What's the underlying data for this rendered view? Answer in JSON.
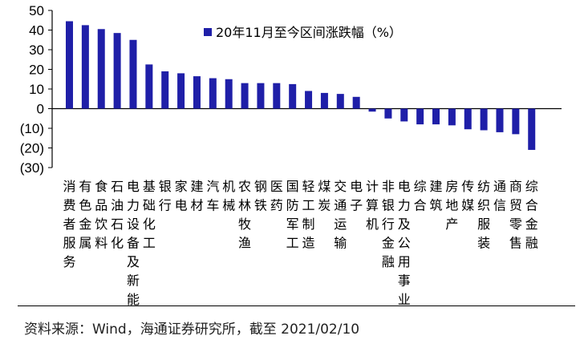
{
  "chart_data": {
    "type": "bar",
    "legend": "20年11月至今区间涨跌幅（%）",
    "legend_position": "top-right",
    "grid": false,
    "ylim": [
      -30,
      50
    ],
    "yticks": [
      50,
      40,
      30,
      20,
      10,
      0,
      -10,
      -20,
      -30
    ],
    "ytick_labels": [
      "50",
      "40",
      "30",
      "20",
      "10",
      "0",
      "(10)",
      "(20)",
      "(30)"
    ],
    "bar_color": "#1f1fa8",
    "categories": [
      "消费者服务",
      "有色金属",
      "食品饮料",
      "石油石化",
      "电力设备及新能源",
      "基础化工",
      "银行",
      "家电",
      "建材",
      "汽车",
      "机械",
      "农林牧渔",
      "钢铁",
      "医药",
      "国防军工",
      "轻工制造",
      "煤炭",
      "交通运输",
      "电子",
      "计算机",
      "非银行金融",
      "电力及公用事业",
      "综合",
      "建筑",
      "房地产",
      "传媒",
      "纺织服装",
      "通信",
      "商贸零售",
      "综合金融"
    ],
    "values": [
      44.5,
      42.5,
      40.5,
      38.5,
      35,
      22.5,
      19,
      18,
      16.5,
      15.5,
      15,
      13,
      13,
      13,
      12.5,
      9,
      8,
      7.5,
      6,
      -1.5,
      -5,
      -6.5,
      -8,
      -8,
      -8.5,
      -10.5,
      -11,
      -12,
      -13,
      -21
    ]
  },
  "source": "资料来源：Wind，海通证券研究所，截至 2021/02/10"
}
